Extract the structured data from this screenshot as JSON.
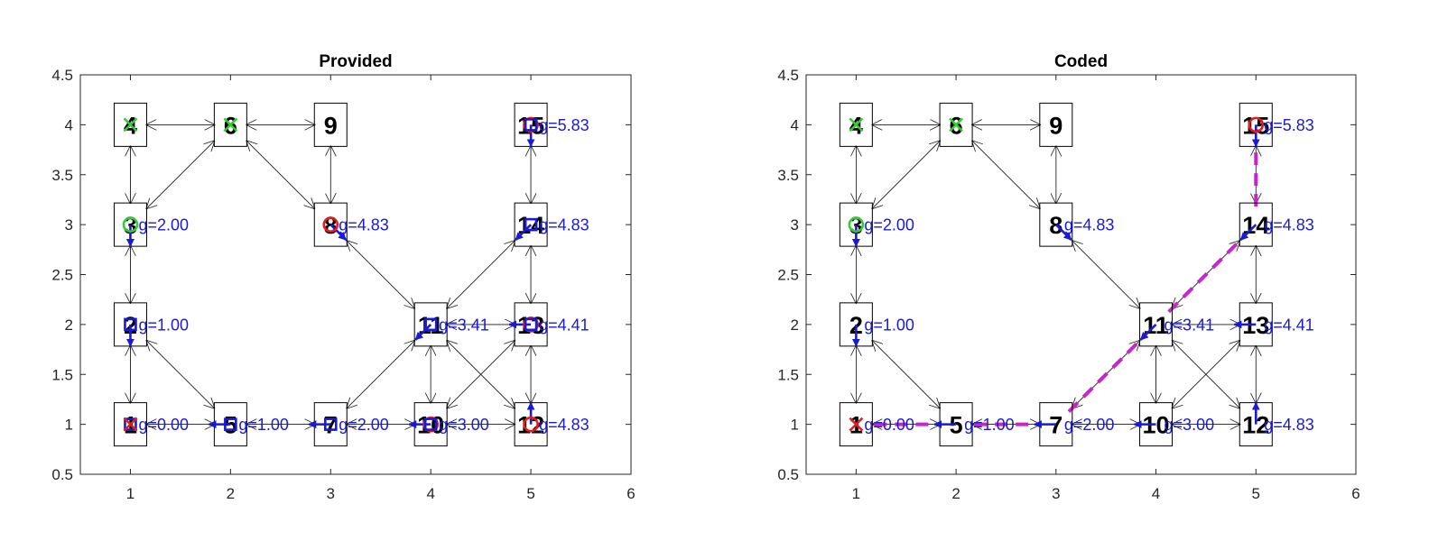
{
  "colors": {
    "background": "#ffffff",
    "axes": "#262626",
    "edge": "#1a1a1a",
    "node_box": "#000000",
    "backpointer": "#1a1ad6",
    "g_text": "#1a1ad6",
    "path": "#cc22cc",
    "marker_start_goal": "#e81a1a",
    "marker_open": "#e81a1a",
    "marker_closed": "#1a1ad6",
    "marker_green": "#33cc33"
  },
  "chart_data": [
    {
      "type": "scatter",
      "title": "Provided",
      "xlabel": "",
      "ylabel": "",
      "xlim": [
        0.5,
        6
      ],
      "ylim": [
        0.5,
        4.5
      ],
      "xticks": [
        "1",
        "2",
        "3",
        "4",
        "5",
        "6"
      ],
      "yticks": [
        "0.5",
        "1",
        "1.5",
        "2",
        "2.5",
        "3",
        "3.5",
        "4",
        "4.5"
      ],
      "grid": false,
      "nodes": [
        {
          "id": "1",
          "x": 1,
          "y": 1
        },
        {
          "id": "2",
          "x": 1,
          "y": 2
        },
        {
          "id": "3",
          "x": 1,
          "y": 3
        },
        {
          "id": "4",
          "x": 1,
          "y": 4
        },
        {
          "id": "5",
          "x": 2,
          "y": 1
        },
        {
          "id": "6",
          "x": 2,
          "y": 4
        },
        {
          "id": "7",
          "x": 3,
          "y": 1
        },
        {
          "id": "8",
          "x": 3,
          "y": 3
        },
        {
          "id": "9",
          "x": 3,
          "y": 4
        },
        {
          "id": "10",
          "x": 4,
          "y": 1
        },
        {
          "id": "11",
          "x": 4,
          "y": 2
        },
        {
          "id": "12",
          "x": 5,
          "y": 1
        },
        {
          "id": "13",
          "x": 5,
          "y": 2
        },
        {
          "id": "14",
          "x": 5,
          "y": 3
        },
        {
          "id": "15",
          "x": 5,
          "y": 4
        }
      ],
      "edges": [
        [
          "1",
          "2"
        ],
        [
          "2",
          "1"
        ],
        [
          "2",
          "3"
        ],
        [
          "3",
          "2"
        ],
        [
          "3",
          "4"
        ],
        [
          "4",
          "3"
        ],
        [
          "4",
          "6"
        ],
        [
          "6",
          "4"
        ],
        [
          "6",
          "9"
        ],
        [
          "9",
          "6"
        ],
        [
          "6",
          "3"
        ],
        [
          "3",
          "6"
        ],
        [
          "6",
          "8"
        ],
        [
          "8",
          "6"
        ],
        [
          "9",
          "8"
        ],
        [
          "8",
          "9"
        ],
        [
          "2",
          "5"
        ],
        [
          "5",
          "2"
        ],
        [
          "1",
          "5"
        ],
        [
          "5",
          "1"
        ],
        [
          "5",
          "7"
        ],
        [
          "7",
          "5"
        ],
        [
          "7",
          "10"
        ],
        [
          "10",
          "7"
        ],
        [
          "10",
          "12"
        ],
        [
          "12",
          "10"
        ],
        [
          "8",
          "11"
        ],
        [
          "11",
          "8"
        ],
        [
          "11",
          "7"
        ],
        [
          "7",
          "11"
        ],
        [
          "11",
          "10"
        ],
        [
          "10",
          "11"
        ],
        [
          "11",
          "13"
        ],
        [
          "13",
          "11"
        ],
        [
          "11",
          "14"
        ],
        [
          "14",
          "11"
        ],
        [
          "11",
          "12"
        ],
        [
          "12",
          "11"
        ],
        [
          "13",
          "10"
        ],
        [
          "10",
          "13"
        ],
        [
          "13",
          "12"
        ],
        [
          "12",
          "13"
        ],
        [
          "13",
          "14"
        ],
        [
          "14",
          "13"
        ],
        [
          "14",
          "15"
        ],
        [
          "15",
          "14"
        ]
      ],
      "g_values": [
        {
          "node": "1",
          "text": "g=0.00"
        },
        {
          "node": "2",
          "text": "g=1.00"
        },
        {
          "node": "3",
          "text": "g=2.00"
        },
        {
          "node": "5",
          "text": "g=1.00"
        },
        {
          "node": "7",
          "text": "g=2.00"
        },
        {
          "node": "8",
          "text": "g=4.83"
        },
        {
          "node": "10",
          "text": "g=3.00"
        },
        {
          "node": "11",
          "text": "g=3.41"
        },
        {
          "node": "12",
          "text": "g=4.83"
        },
        {
          "node": "13",
          "text": "g=4.41"
        },
        {
          "node": "14",
          "text": "g=4.83"
        },
        {
          "node": "15",
          "text": "g=5.83"
        }
      ],
      "backpointers": [
        [
          "2",
          "1"
        ],
        [
          "3",
          "2"
        ],
        [
          "5",
          "1"
        ],
        [
          "7",
          "5"
        ],
        [
          "10",
          "7"
        ],
        [
          "11",
          "7"
        ],
        [
          "8",
          "11"
        ],
        [
          "13",
          "11"
        ],
        [
          "14",
          "11"
        ],
        [
          "12",
          "13"
        ],
        [
          "15",
          "14"
        ]
      ],
      "path": [],
      "markers": [
        {
          "node": "1",
          "shape": "square",
          "color": "blue"
        },
        {
          "node": "1",
          "shape": "x",
          "color": "red"
        },
        {
          "node": "2",
          "shape": "square",
          "color": "blue"
        },
        {
          "node": "3",
          "shape": "circle",
          "color": "green"
        },
        {
          "node": "4",
          "shape": "x",
          "color": "green"
        },
        {
          "node": "5",
          "shape": "square",
          "color": "blue"
        },
        {
          "node": "6",
          "shape": "x",
          "color": "green"
        },
        {
          "node": "7",
          "shape": "square",
          "color": "blue"
        },
        {
          "node": "8",
          "shape": "circle",
          "color": "red"
        },
        {
          "node": "10",
          "shape": "circle",
          "color": "red"
        },
        {
          "node": "10",
          "shape": "square",
          "color": "blue"
        },
        {
          "node": "11",
          "shape": "square",
          "color": "blue"
        },
        {
          "node": "12",
          "shape": "circle",
          "color": "red"
        },
        {
          "node": "13",
          "shape": "circle",
          "color": "red"
        },
        {
          "node": "13",
          "shape": "square",
          "color": "blue"
        },
        {
          "node": "14",
          "shape": "square",
          "color": "blue"
        },
        {
          "node": "15",
          "shape": "circle",
          "color": "red"
        },
        {
          "node": "15",
          "shape": "square",
          "color": "blue"
        }
      ]
    },
    {
      "type": "scatter",
      "title": "Coded",
      "xlabel": "",
      "ylabel": "",
      "xlim": [
        0.5,
        6
      ],
      "ylim": [
        0.5,
        4.5
      ],
      "xticks": [
        "1",
        "2",
        "3",
        "4",
        "5",
        "6"
      ],
      "yticks": [
        "0.5",
        "1",
        "1.5",
        "2",
        "2.5",
        "3",
        "3.5",
        "4",
        "4.5"
      ],
      "grid": false,
      "nodes": [
        {
          "id": "1",
          "x": 1,
          "y": 1
        },
        {
          "id": "2",
          "x": 1,
          "y": 2
        },
        {
          "id": "3",
          "x": 1,
          "y": 3
        },
        {
          "id": "4",
          "x": 1,
          "y": 4
        },
        {
          "id": "5",
          "x": 2,
          "y": 1
        },
        {
          "id": "6",
          "x": 2,
          "y": 4
        },
        {
          "id": "7",
          "x": 3,
          "y": 1
        },
        {
          "id": "8",
          "x": 3,
          "y": 3
        },
        {
          "id": "9",
          "x": 3,
          "y": 4
        },
        {
          "id": "10",
          "x": 4,
          "y": 1
        },
        {
          "id": "11",
          "x": 4,
          "y": 2
        },
        {
          "id": "12",
          "x": 5,
          "y": 1
        },
        {
          "id": "13",
          "x": 5,
          "y": 2
        },
        {
          "id": "14",
          "x": 5,
          "y": 3
        },
        {
          "id": "15",
          "x": 5,
          "y": 4
        }
      ],
      "edges": [
        [
          "1",
          "2"
        ],
        [
          "2",
          "1"
        ],
        [
          "2",
          "3"
        ],
        [
          "3",
          "2"
        ],
        [
          "3",
          "4"
        ],
        [
          "4",
          "3"
        ],
        [
          "4",
          "6"
        ],
        [
          "6",
          "4"
        ],
        [
          "6",
          "9"
        ],
        [
          "9",
          "6"
        ],
        [
          "6",
          "3"
        ],
        [
          "3",
          "6"
        ],
        [
          "6",
          "8"
        ],
        [
          "8",
          "6"
        ],
        [
          "9",
          "8"
        ],
        [
          "8",
          "9"
        ],
        [
          "2",
          "5"
        ],
        [
          "5",
          "2"
        ],
        [
          "1",
          "5"
        ],
        [
          "5",
          "1"
        ],
        [
          "5",
          "7"
        ],
        [
          "7",
          "5"
        ],
        [
          "7",
          "10"
        ],
        [
          "10",
          "7"
        ],
        [
          "10",
          "12"
        ],
        [
          "12",
          "10"
        ],
        [
          "8",
          "11"
        ],
        [
          "11",
          "8"
        ],
        [
          "11",
          "7"
        ],
        [
          "7",
          "11"
        ],
        [
          "11",
          "10"
        ],
        [
          "10",
          "11"
        ],
        [
          "11",
          "13"
        ],
        [
          "13",
          "11"
        ],
        [
          "11",
          "14"
        ],
        [
          "14",
          "11"
        ],
        [
          "11",
          "12"
        ],
        [
          "12",
          "11"
        ],
        [
          "13",
          "10"
        ],
        [
          "10",
          "13"
        ],
        [
          "13",
          "12"
        ],
        [
          "12",
          "13"
        ],
        [
          "13",
          "14"
        ],
        [
          "14",
          "13"
        ],
        [
          "14",
          "15"
        ],
        [
          "15",
          "14"
        ]
      ],
      "g_values": [
        {
          "node": "1",
          "text": "g=0.00"
        },
        {
          "node": "2",
          "text": "g=1.00"
        },
        {
          "node": "3",
          "text": "g=2.00"
        },
        {
          "node": "5",
          "text": "g=1.00"
        },
        {
          "node": "7",
          "text": "g=2.00"
        },
        {
          "node": "8",
          "text": "g=4.83"
        },
        {
          "node": "10",
          "text": "g=3.00"
        },
        {
          "node": "11",
          "text": "g=3.41"
        },
        {
          "node": "12",
          "text": "g=4.83"
        },
        {
          "node": "13",
          "text": "g=4.41"
        },
        {
          "node": "14",
          "text": "g=4.83"
        },
        {
          "node": "15",
          "text": "g=5.83"
        }
      ],
      "backpointers": [
        [
          "2",
          "1"
        ],
        [
          "3",
          "2"
        ],
        [
          "5",
          "1"
        ],
        [
          "7",
          "5"
        ],
        [
          "10",
          "7"
        ],
        [
          "11",
          "7"
        ],
        [
          "8",
          "11"
        ],
        [
          "13",
          "11"
        ],
        [
          "14",
          "11"
        ],
        [
          "12",
          "13"
        ],
        [
          "15",
          "14"
        ]
      ],
      "path": [
        "1",
        "5",
        "7",
        "11",
        "14",
        "15"
      ],
      "markers": [
        {
          "node": "1",
          "shape": "x",
          "color": "red"
        },
        {
          "node": "3",
          "shape": "circle",
          "color": "green"
        },
        {
          "node": "4",
          "shape": "x",
          "color": "green"
        },
        {
          "node": "6",
          "shape": "x",
          "color": "green"
        },
        {
          "node": "15",
          "shape": "circle",
          "color": "red"
        }
      ]
    }
  ]
}
